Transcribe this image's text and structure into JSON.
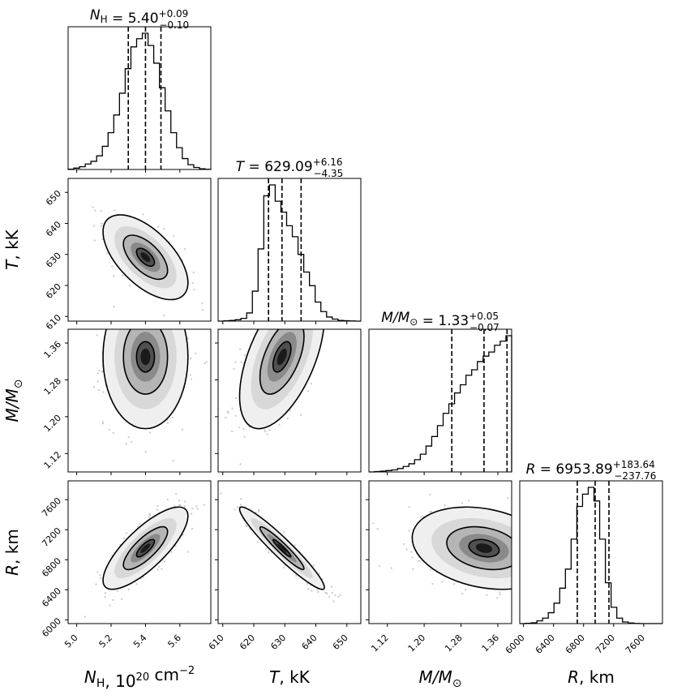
{
  "chart_data": {
    "type": "corner",
    "parameters": [
      {
        "key": "NH",
        "label_main": "N",
        "label_sub": "H",
        "label_unit": ", 10",
        "label_unit_sup": "20",
        "label_tail": " cm",
        "label_tail_sup": "−2",
        "title_value": "5.40",
        "title_plus": "+0.09",
        "title_minus": "−0.10",
        "median": 5.4,
        "q16": 5.3,
        "q84": 5.49,
        "range": [
          4.95,
          5.78
        ],
        "ticks": [
          5.0,
          5.2,
          5.4,
          5.6
        ],
        "tick_labels": [
          "5.0",
          "5.2",
          "5.4",
          "5.6"
        ],
        "hist": [
          0.002,
          0.01,
          0.02,
          0.04,
          0.06,
          0.1,
          0.17,
          0.27,
          0.4,
          0.56,
          0.74,
          0.9,
          0.96,
          1.0,
          0.91,
          0.78,
          0.6,
          0.43,
          0.27,
          0.16,
          0.08,
          0.035,
          0.015,
          0.005,
          0.001
        ]
      },
      {
        "key": "T",
        "label_main": "T",
        "label_unit": ", kK",
        "title_value": "629.09",
        "title_plus": "+6.16",
        "title_minus": "−4.35",
        "median": 629.09,
        "q16": 624.74,
        "q84": 635.25,
        "range": [
          608.5,
          654.5
        ],
        "ticks": [
          610,
          620,
          630,
          640,
          650
        ],
        "tick_labels": [
          "610",
          "620",
          "630",
          "640",
          "650"
        ],
        "hist": [
          0.0,
          0.002,
          0.005,
          0.01,
          0.02,
          0.06,
          0.22,
          0.53,
          0.92,
          1.0,
          0.88,
          0.8,
          0.7,
          0.62,
          0.49,
          0.36,
          0.26,
          0.14,
          0.07,
          0.03,
          0.015,
          0.005,
          0.003,
          0.001,
          0.0
        ]
      },
      {
        "key": "M",
        "label_main": "M/M",
        "label_sub": "⊙",
        "title_value": "1.33",
        "title_plus": "+0.05",
        "title_minus": "−0.07",
        "median": 1.33,
        "q16": 1.26,
        "q84": 1.38,
        "range": [
          1.08,
          1.39
        ],
        "ticks": [
          1.12,
          1.2,
          1.28,
          1.36
        ],
        "tick_labels": [
          "1.12",
          "1.20",
          "1.28",
          "1.36"
        ],
        "hist": [
          0.0,
          0.003,
          0.006,
          0.01,
          0.015,
          0.025,
          0.04,
          0.06,
          0.09,
          0.13,
          0.19,
          0.26,
          0.34,
          0.43,
          0.5,
          0.58,
          0.64,
          0.71,
          0.75,
          0.81,
          0.85,
          0.88,
          0.93,
          0.96,
          1.0
        ]
      },
      {
        "key": "R",
        "label_main": "R",
        "label_unit": ", km",
        "title_value": "6953.89",
        "title_plus": "+183.64",
        "title_minus": "−237.76",
        "median": 6953.89,
        "q16": 6716.13,
        "q84": 7137.53,
        "range": [
          5950,
          7850
        ],
        "ticks": [
          6000,
          6400,
          6800,
          7200,
          7600
        ],
        "tick_labels": [
          "6000",
          "6400",
          "6800",
          "7200",
          "7600"
        ],
        "hist": [
          0.0,
          0.002,
          0.006,
          0.02,
          0.04,
          0.08,
          0.15,
          0.26,
          0.4,
          0.62,
          0.86,
          0.95,
          1.0,
          0.9,
          0.62,
          0.3,
          0.12,
          0.04,
          0.012,
          0.004,
          0.001,
          0.0,
          0.0,
          0.0,
          0.0
        ]
      }
    ],
    "correlations": [
      {
        "pair": [
          "NH",
          "T"
        ],
        "rho": -0.6
      },
      {
        "pair": [
          "NH",
          "M"
        ],
        "rho": 0.0
      },
      {
        "pair": [
          "T",
          "M"
        ],
        "rho": 0.55
      },
      {
        "pair": [
          "NH",
          "R"
        ],
        "rho": 0.78
      },
      {
        "pair": [
          "T",
          "R"
        ],
        "rho": -0.95
      },
      {
        "pair": [
          "M",
          "R"
        ],
        "rho": -0.25
      }
    ],
    "quantile_line_style": "dashed",
    "contour_style": "black solid",
    "colors": {
      "ink": "#000000",
      "scatter": "#9a9a9a"
    }
  }
}
